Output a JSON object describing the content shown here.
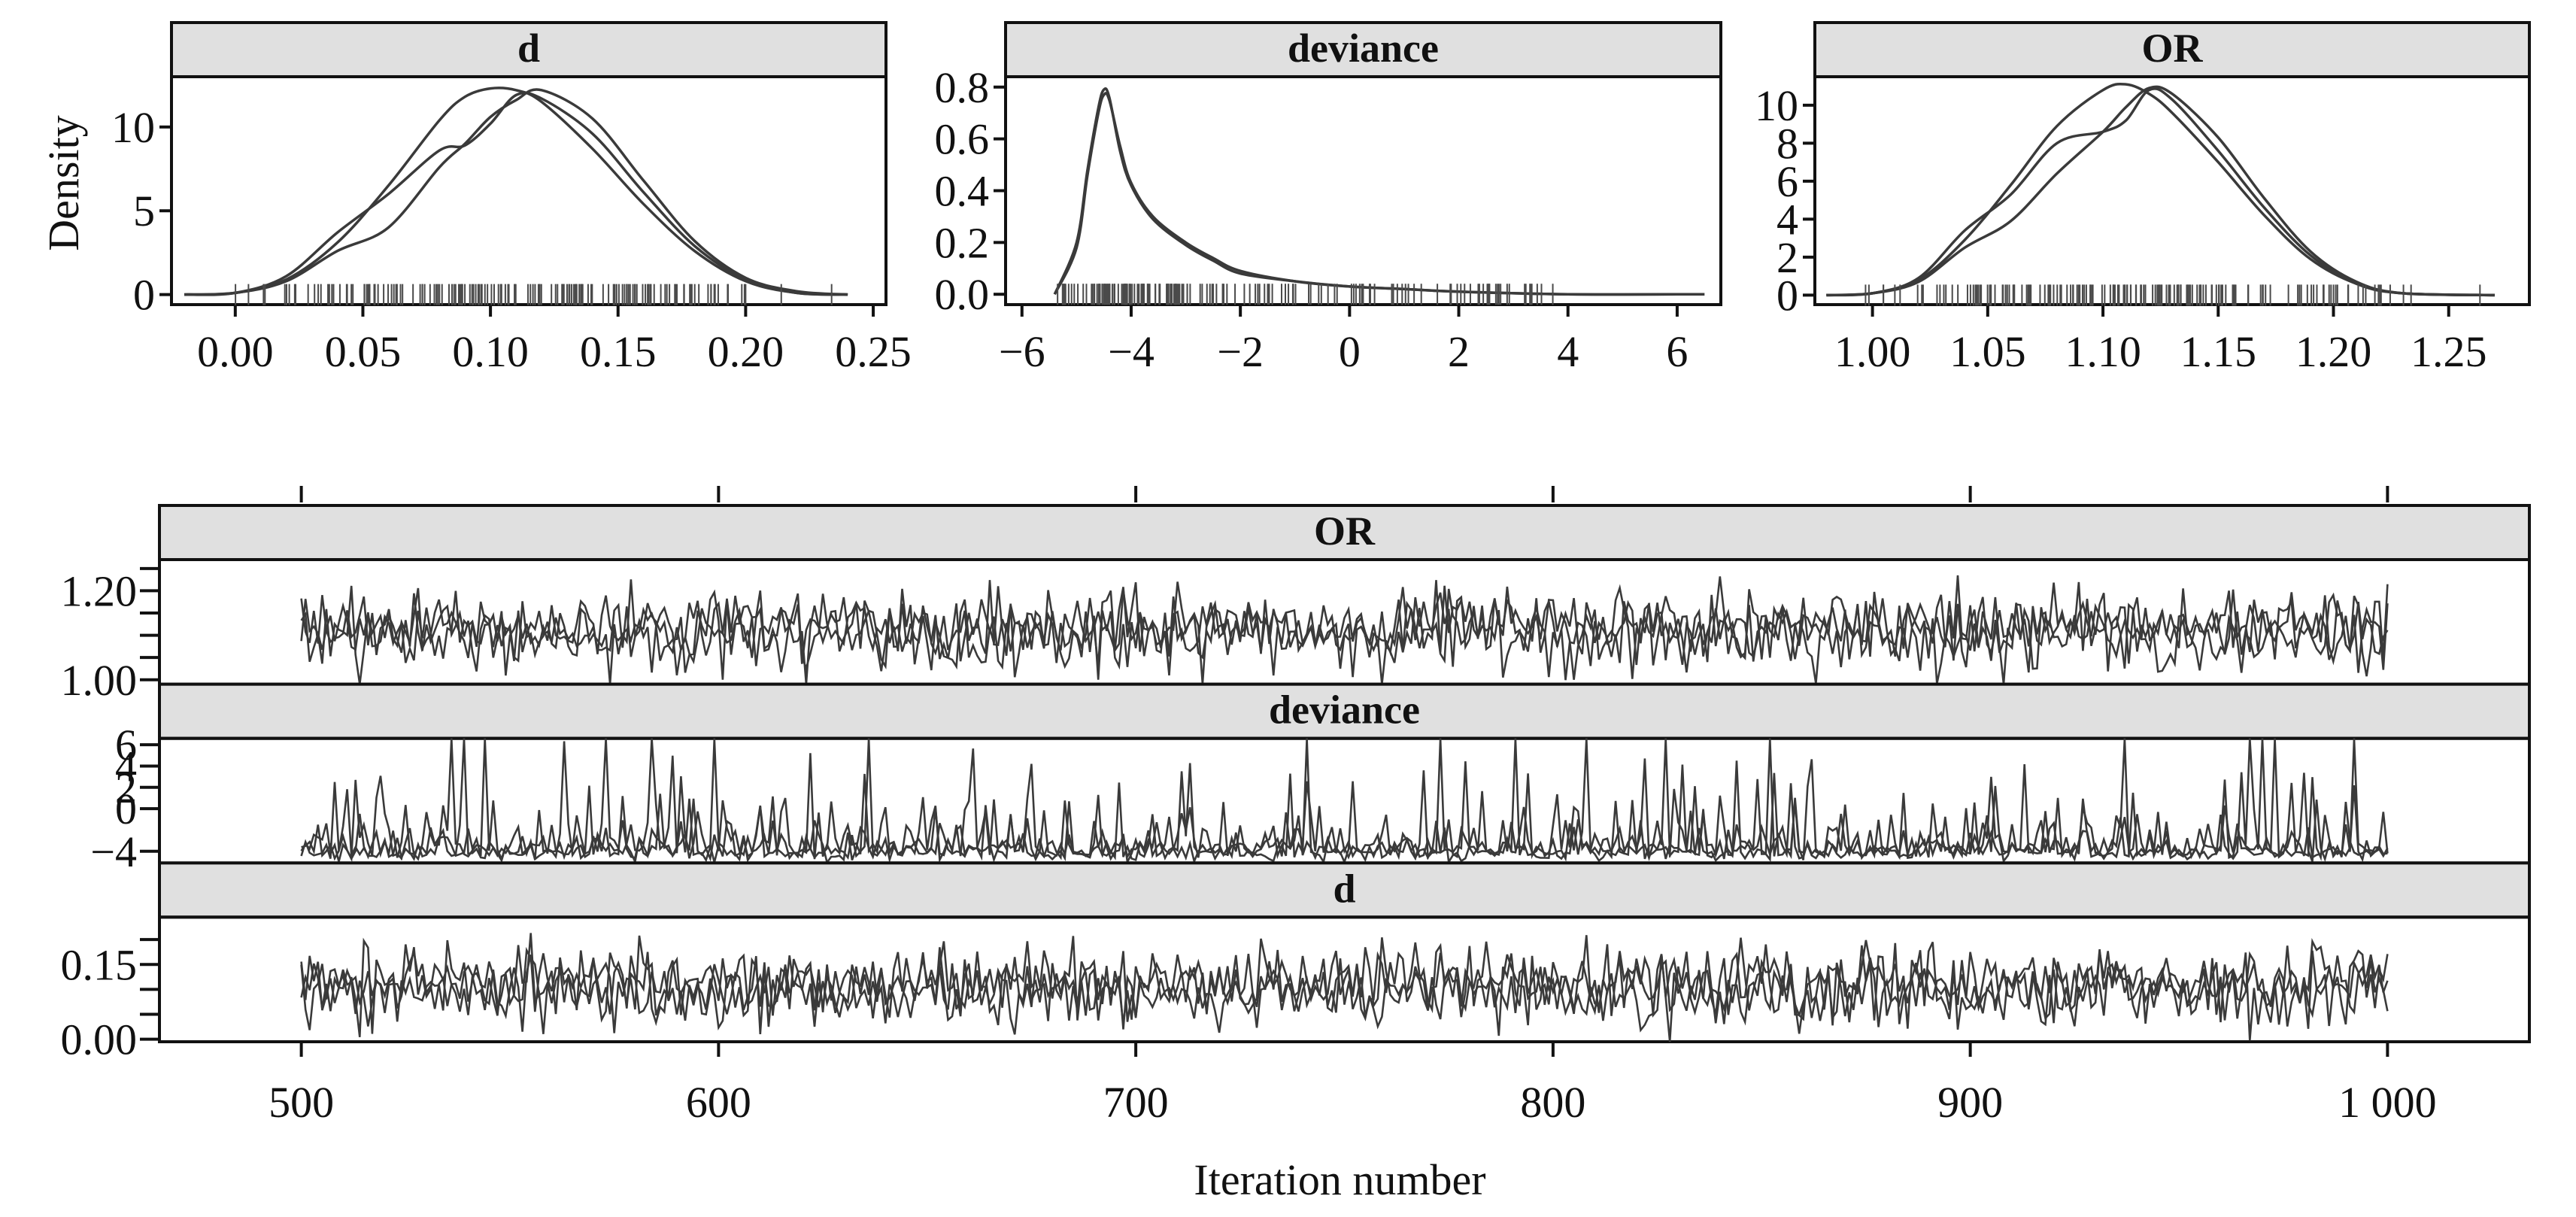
{
  "chart_data": [
    {
      "type": "line",
      "panel": "density",
      "title": "d",
      "ylabel": "Density",
      "xlabel": "",
      "xlim": [
        -0.025,
        0.255
      ],
      "ylim": [
        -0.6,
        13.0
      ],
      "xticks": [
        0.0,
        0.05,
        0.1,
        0.15,
        0.2,
        0.25
      ],
      "xtick_labels": [
        "0.00",
        "0.05",
        "0.10",
        "0.15",
        "0.20",
        "0.25"
      ],
      "yticks": [
        0,
        5,
        10
      ],
      "ytick_labels": [
        "0",
        "5",
        "10"
      ],
      "rug": true,
      "series": [
        {
          "x": [
            -0.02,
            0.0,
            0.02,
            0.04,
            0.06,
            0.08,
            0.09,
            0.1,
            0.11,
            0.12,
            0.14,
            0.16,
            0.18,
            0.2,
            0.22,
            0.24
          ],
          "y": [
            0.0,
            0.1,
            0.9,
            3.1,
            6.5,
            10.4,
            11.8,
            12.3,
            12.2,
            11.5,
            8.7,
            5.4,
            2.6,
            0.8,
            0.1,
            0.0
          ]
        },
        {
          "x": [
            -0.02,
            0.0,
            0.02,
            0.04,
            0.06,
            0.08,
            0.09,
            0.1,
            0.11,
            0.12,
            0.14,
            0.16,
            0.18,
            0.2,
            0.22,
            0.24
          ],
          "y": [
            0.0,
            0.1,
            0.8,
            2.6,
            4.0,
            7.6,
            9.0,
            10.6,
            11.6,
            12.2,
            10.5,
            6.8,
            3.2,
            1.0,
            0.2,
            0.0
          ]
        },
        {
          "x": [
            -0.02,
            0.0,
            0.02,
            0.04,
            0.06,
            0.08,
            0.09,
            0.1,
            0.11,
            0.12,
            0.14,
            0.16,
            0.18,
            0.2,
            0.22,
            0.24
          ],
          "y": [
            0.0,
            0.1,
            1.1,
            3.7,
            6.0,
            8.6,
            8.9,
            10.2,
            11.9,
            11.7,
            9.6,
            6.1,
            2.9,
            0.9,
            0.1,
            0.0
          ]
        }
      ]
    },
    {
      "type": "line",
      "panel": "density",
      "title": "deviance",
      "xlabel": "",
      "ylabel": "",
      "xlim": [
        -6.3,
        6.8
      ],
      "ylim": [
        -0.04,
        0.84
      ],
      "xticks": [
        -6,
        -4,
        -2,
        0,
        2,
        4,
        6
      ],
      "xtick_labels": [
        "−6",
        "−4",
        "−2",
        "0",
        "2",
        "4",
        "6"
      ],
      "yticks": [
        0.0,
        0.2,
        0.4,
        0.6,
        0.8
      ],
      "ytick_labels": [
        "0.0",
        "0.2",
        "0.4",
        "0.6",
        "0.8"
      ],
      "rug": true,
      "series": [
        {
          "x": [
            -5.4,
            -5.0,
            -4.8,
            -4.6,
            -4.5,
            -4.4,
            -4.2,
            -4.0,
            -3.6,
            -3.0,
            -2.5,
            -2.0,
            -1.0,
            0.0,
            1.0,
            2.0,
            4.0,
            6.5
          ],
          "y": [
            0.0,
            0.2,
            0.48,
            0.72,
            0.79,
            0.76,
            0.55,
            0.42,
            0.29,
            0.19,
            0.13,
            0.08,
            0.05,
            0.03,
            0.02,
            0.01,
            0.0,
            0.0
          ]
        },
        {
          "x": [
            -5.4,
            -5.0,
            -4.8,
            -4.6,
            -4.5,
            -4.4,
            -4.2,
            -4.0,
            -3.6,
            -3.0,
            -2.5,
            -2.0,
            -1.0,
            0.0,
            1.0,
            2.0,
            4.0,
            6.5
          ],
          "y": [
            0.0,
            0.18,
            0.46,
            0.7,
            0.77,
            0.75,
            0.57,
            0.43,
            0.3,
            0.2,
            0.14,
            0.09,
            0.05,
            0.03,
            0.02,
            0.01,
            0.0,
            0.0
          ]
        }
      ]
    },
    {
      "type": "line",
      "panel": "density",
      "title": "OR",
      "xlabel": "",
      "ylabel": "",
      "xlim": [
        0.975,
        1.285
      ],
      "ylim": [
        -0.5,
        11.5
      ],
      "xticks": [
        1.0,
        1.05,
        1.1,
        1.15,
        1.2,
        1.25
      ],
      "xtick_labels": [
        "1.00",
        "1.05",
        "1.10",
        "1.15",
        "1.20",
        "1.25"
      ],
      "yticks": [
        0,
        2,
        4,
        6,
        8,
        10
      ],
      "ytick_labels": [
        "0",
        "2",
        "4",
        "6",
        "8",
        "10"
      ],
      "rug": true,
      "series": [
        {
          "x": [
            0.98,
            1.0,
            1.02,
            1.04,
            1.06,
            1.08,
            1.1,
            1.11,
            1.12,
            1.13,
            1.15,
            1.17,
            1.19,
            1.21,
            1.23,
            1.27
          ],
          "y": [
            0.0,
            0.1,
            0.8,
            2.9,
            5.8,
            8.9,
            10.8,
            11.1,
            10.6,
            9.6,
            7.0,
            4.2,
            1.9,
            0.6,
            0.1,
            0.0
          ]
        },
        {
          "x": [
            0.98,
            1.0,
            1.02,
            1.04,
            1.06,
            1.08,
            1.1,
            1.11,
            1.12,
            1.13,
            1.15,
            1.17,
            1.19,
            1.21,
            1.23,
            1.27
          ],
          "y": [
            0.0,
            0.1,
            0.7,
            2.5,
            3.9,
            6.4,
            8.6,
            9.9,
            10.9,
            10.6,
            8.3,
            5.1,
            2.3,
            0.7,
            0.1,
            0.0
          ]
        },
        {
          "x": [
            0.98,
            1.0,
            1.02,
            1.04,
            1.06,
            1.08,
            1.1,
            1.11,
            1.12,
            1.13,
            1.15,
            1.17,
            1.19,
            1.21,
            1.23,
            1.27
          ],
          "y": [
            0.0,
            0.1,
            0.9,
            3.4,
            5.3,
            8.0,
            8.6,
            9.2,
            10.8,
            10.3,
            7.6,
            4.6,
            2.1,
            0.6,
            0.1,
            0.0
          ]
        }
      ]
    },
    {
      "type": "line",
      "panel": "trace",
      "xlabel": "Iteration number",
      "ylabel": "",
      "xlim": [
        466,
        1034
      ],
      "xticks": [
        500,
        600,
        700,
        800,
        900,
        1000
      ],
      "xtick_labels": [
        "500",
        "600",
        "700",
        "800",
        "900",
        "1 000"
      ],
      "facets": [
        {
          "title": "OR",
          "ylim": [
            0.99,
            1.27
          ],
          "yticks": [
            1.0,
            1.2
          ],
          "ytick_labels": [
            "1.00",
            "1.20"
          ],
          "minor_yticks": [
            1.05,
            1.1,
            1.15,
            1.25
          ],
          "center": 1.11,
          "spread": 0.042,
          "n_chains": 3
        },
        {
          "title": "deviance",
          "ylim": [
            -5.1,
            6.6
          ],
          "yticks": [
            -4,
            0,
            2,
            4,
            6
          ],
          "ytick_labels": [
            "−4",
            "0",
            "2",
            "4",
            "6"
          ],
          "center": -4.3,
          "spread": 1.6,
          "n_chains": 3
        },
        {
          "title": "d",
          "ylim": [
            -0.005,
            0.245
          ],
          "yticks": [
            0.0,
            0.15
          ],
          "ytick_labels": [
            "0.00",
            "0.15"
          ],
          "minor_yticks": [
            0.05,
            0.1,
            0.2
          ],
          "center": 0.105,
          "spread": 0.037,
          "n_chains": 3
        }
      ]
    }
  ]
}
